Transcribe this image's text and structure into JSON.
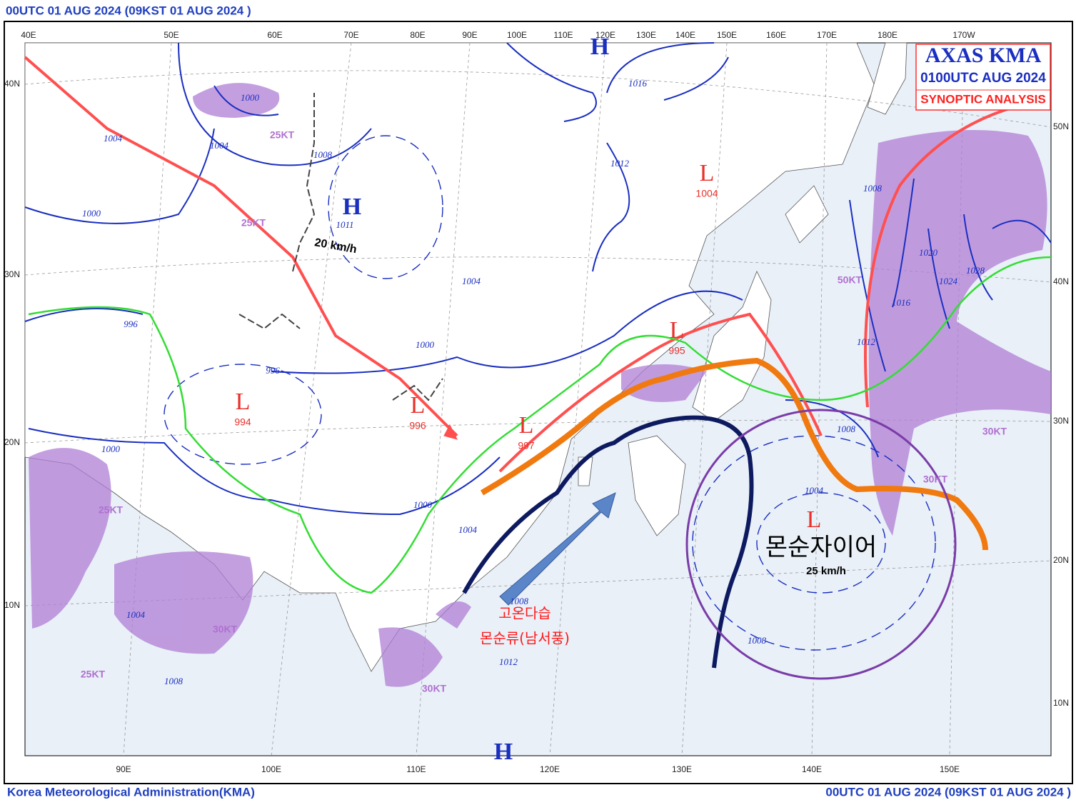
{
  "header": {
    "title": "00UTC 01 AUG 2024 (09KST 01 AUG 2024 )"
  },
  "legend": {
    "agency": "AXAS KMA",
    "time": "0100UTC AUG 2024",
    "product": "SYNOPTIC ANALYSIS"
  },
  "top_longitudes": [
    "40E",
    "50E",
    "60E",
    "70E",
    "80E",
    "90E",
    "100E",
    "110E",
    "120E",
    "130E",
    "140E",
    "150E",
    "160E",
    "170E",
    "180E",
    "170W"
  ],
  "bottom_longitudes": [
    "90E",
    "100E",
    "110E",
    "120E",
    "130E",
    "140E",
    "150E"
  ],
  "left_latitudes": [
    "40N",
    "30N",
    "20N",
    "10N"
  ],
  "right_latitudes": [
    "50N",
    "40N",
    "30N",
    "20N",
    "10N"
  ],
  "highs": [
    {
      "label": "H",
      "pressure": "1011"
    },
    {
      "label": "H"
    },
    {
      "label": "H"
    }
  ],
  "lows": [
    {
      "label": "L",
      "pressure": "994"
    },
    {
      "label": "L",
      "pressure": "1004"
    },
    {
      "label": "L",
      "pressure": "996"
    },
    {
      "label": "L",
      "pressure": "997"
    },
    {
      "label": "L",
      "pressure": "995"
    },
    {
      "label": "L"
    }
  ],
  "isobar_labels": [
    "1000",
    "1004",
    "1008",
    "1004",
    "1000",
    "996",
    "996",
    "1000",
    "1000",
    "1000",
    "1004",
    "1008",
    "1012",
    "1008",
    "1004",
    "1004",
    "1008",
    "1004",
    "1008",
    "1016",
    "1012",
    "1012",
    "1016",
    "1020",
    "1024",
    "1028",
    "1008"
  ],
  "wind_labels": [
    "25KT",
    "25KT",
    "25KT",
    "30KT",
    "25KT",
    "30KT",
    "30KT",
    "30KT",
    "50KT",
    "20 km/h",
    "25 km/h"
  ],
  "annotations": {
    "gyre": "몬순자이어",
    "humid": "고온다습",
    "monsoon_flow": "몬순류(남서풍)"
  },
  "footer": {
    "agency": "Korea Meteorological Administration(KMA)",
    "time": "00UTC 01 AUG 2024 (09KST 01 AUG 2024 )"
  }
}
